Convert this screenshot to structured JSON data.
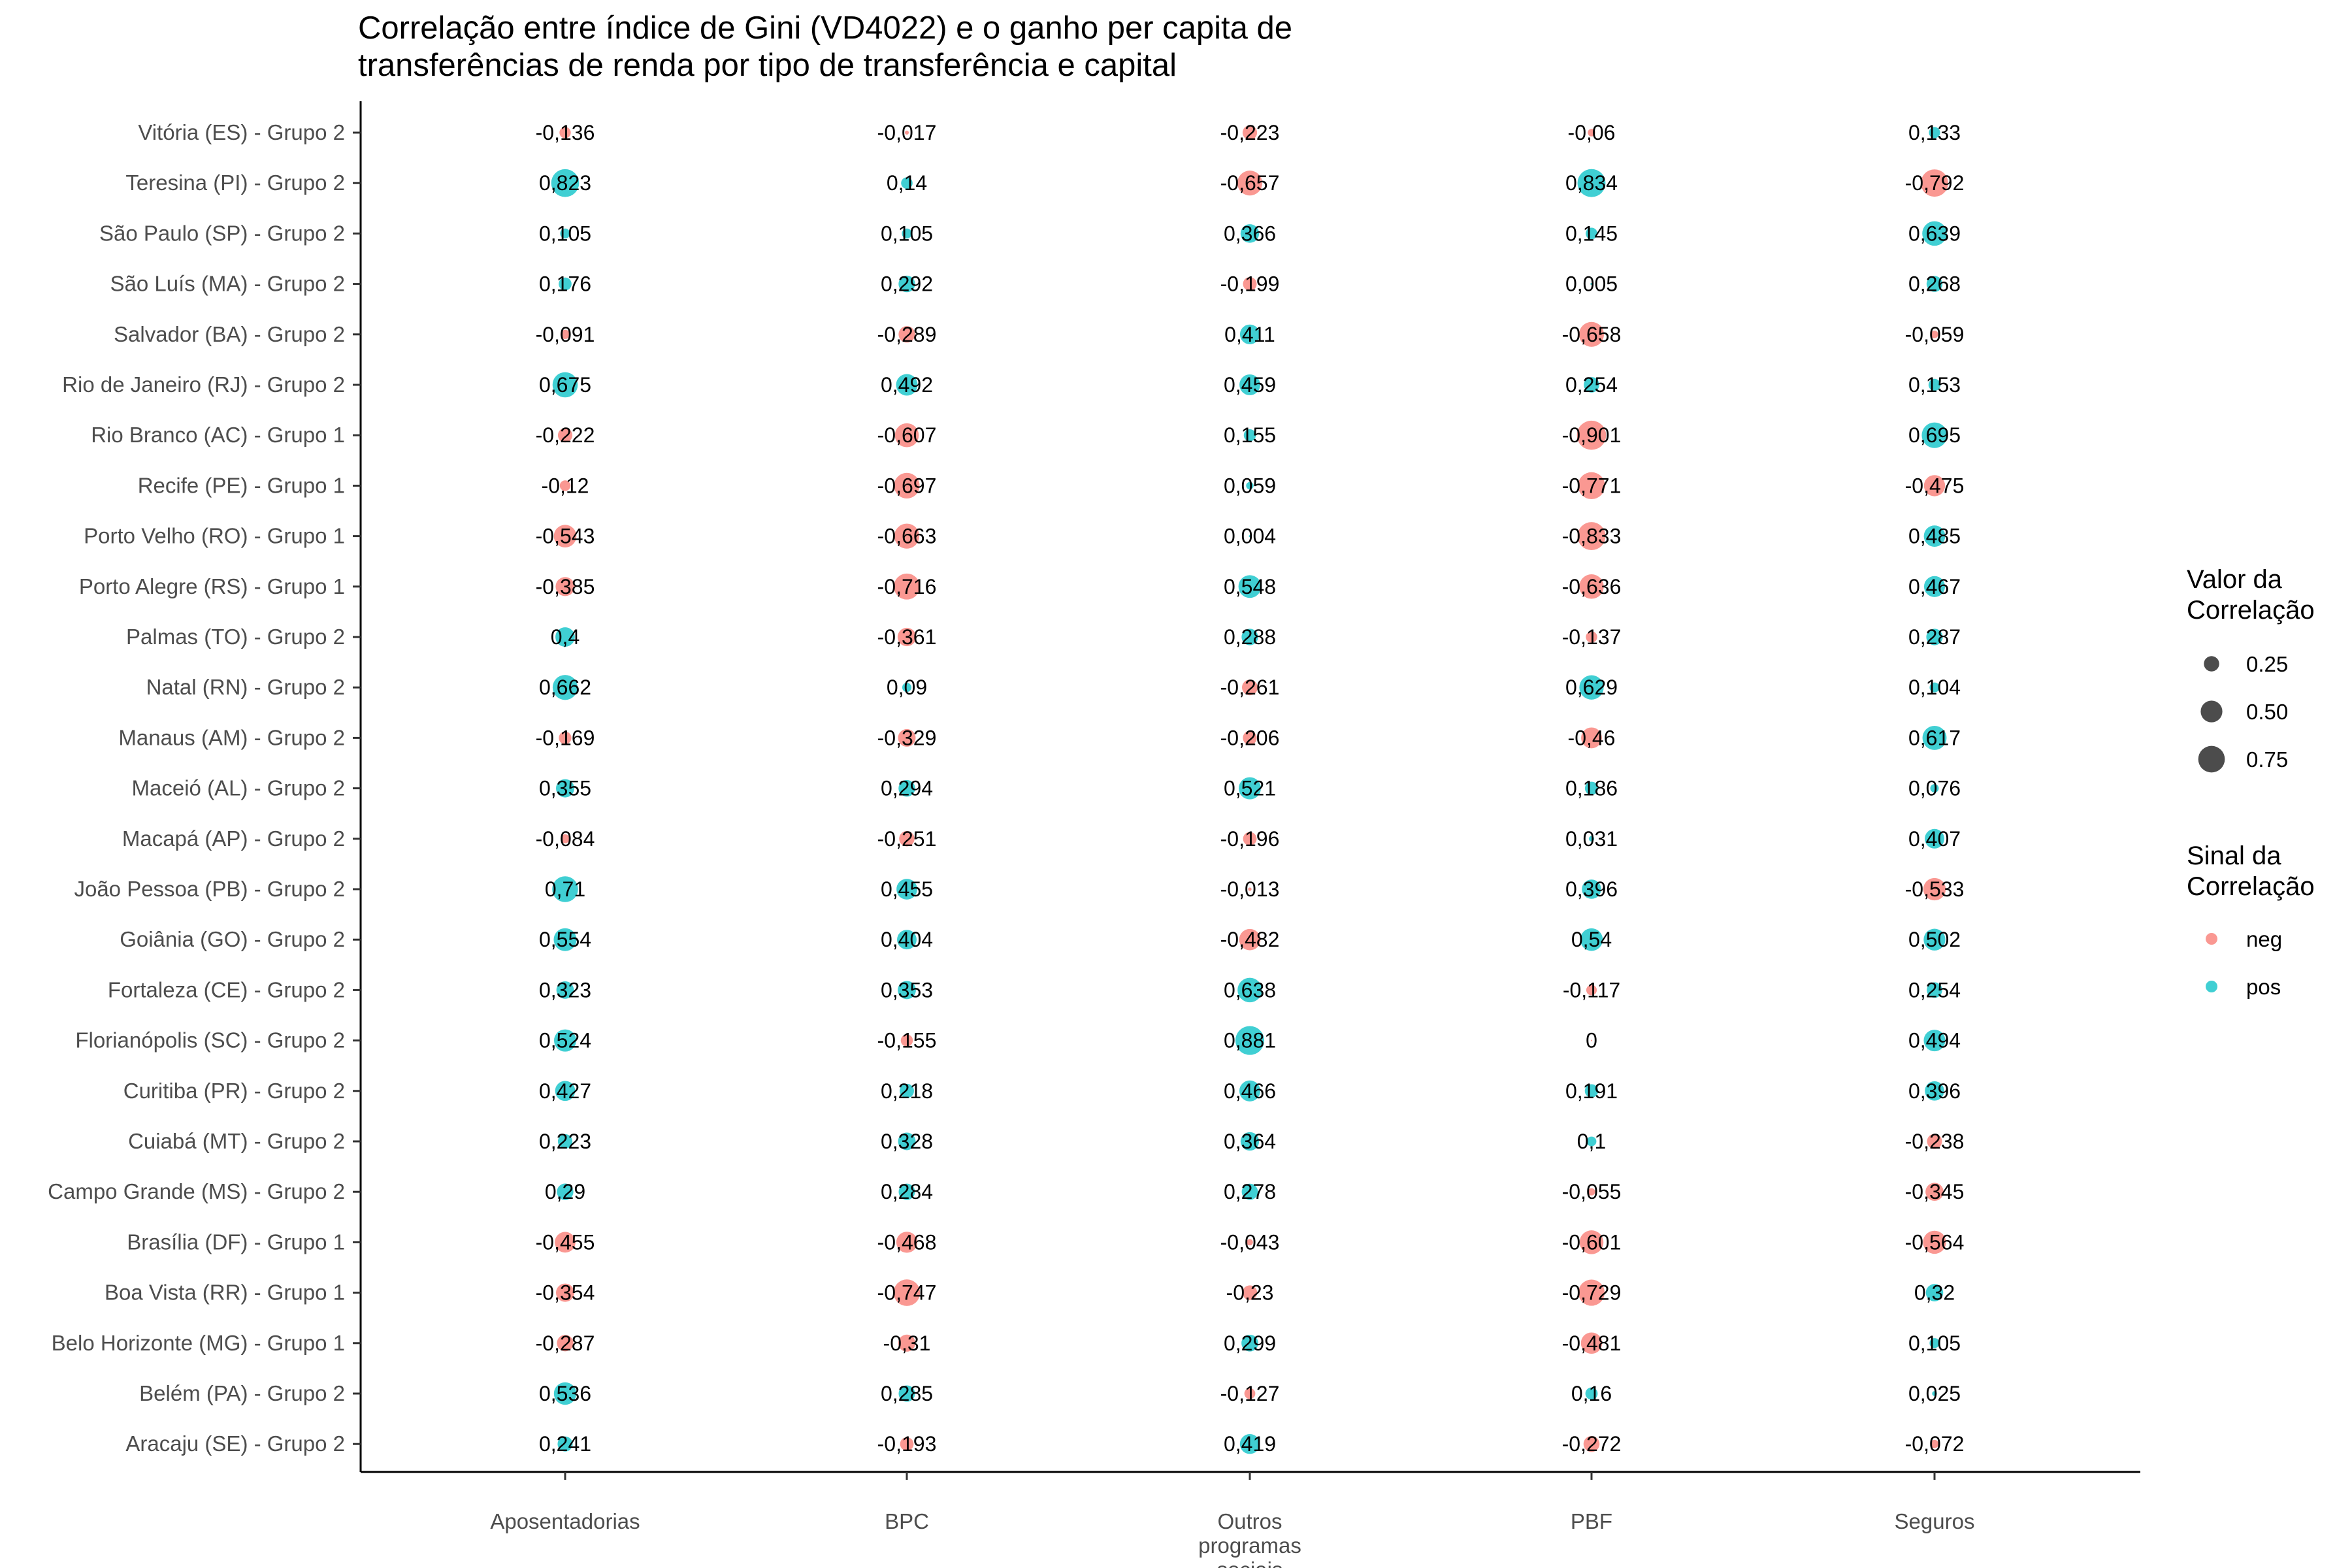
{
  "chart_data": {
    "type": "scatter",
    "title": [
      "Correlação entre índice de Gini (VD4022) e o ganho per capita de",
      "transferências de renda por tipo de transferência e capital"
    ],
    "xlabel": "",
    "ylabel": "",
    "categories": [
      {
        "key": "aposentadorias",
        "lines": [
          "Aposentadorias"
        ]
      },
      {
        "key": "bpc",
        "lines": [
          "BPC"
        ]
      },
      {
        "key": "outros",
        "lines": [
          "Outros",
          "programas",
          "sociais"
        ]
      },
      {
        "key": "pbf",
        "lines": [
          "PBF"
        ]
      },
      {
        "key": "seguros",
        "lines": [
          "Seguros"
        ]
      }
    ],
    "rows": [
      {
        "name": "Vitória (ES) - Grupo 2",
        "values": [
          "-0,136",
          "-0,017",
          "-0,223",
          "-0,06",
          "0,133"
        ]
      },
      {
        "name": "Teresina (PI) - Grupo 2",
        "values": [
          "0,823",
          "0,14",
          "-0,657",
          "0,834",
          "-0,792"
        ]
      },
      {
        "name": "São Paulo (SP) - Grupo 2",
        "values": [
          "0,105",
          "0,105",
          "0,366",
          "0,145",
          "0,639"
        ]
      },
      {
        "name": "São Luís (MA) - Grupo 2",
        "values": [
          "0,176",
          "0,292",
          "-0,199",
          "0,005",
          "0,268"
        ]
      },
      {
        "name": "Salvador (BA) - Grupo 2",
        "values": [
          "-0,091",
          "-0,289",
          "0,411",
          "-0,658",
          "-0,059"
        ]
      },
      {
        "name": "Rio de Janeiro (RJ) - Grupo 2",
        "values": [
          "0,675",
          "0,492",
          "0,459",
          "0,254",
          "0,153"
        ]
      },
      {
        "name": "Rio Branco (AC) - Grupo 1",
        "values": [
          "-0,222",
          "-0,607",
          "0,155",
          "-0,901",
          "0,695"
        ]
      },
      {
        "name": "Recife (PE) - Grupo 1",
        "values": [
          "-0,12",
          "-0,697",
          "0,059",
          "-0,771",
          "-0,475"
        ]
      },
      {
        "name": "Porto Velho (RO) - Grupo 1",
        "values": [
          "-0,543",
          "-0,663",
          "0,004",
          "-0,833",
          "0,485"
        ]
      },
      {
        "name": "Porto Alegre (RS) - Grupo 1",
        "values": [
          "-0,385",
          "-0,716",
          "0,548",
          "-0,636",
          "0,467"
        ]
      },
      {
        "name": "Palmas (TO) - Grupo 2",
        "values": [
          "0,4",
          "-0,361",
          "0,288",
          "-0,137",
          "0,287"
        ]
      },
      {
        "name": "Natal (RN) - Grupo 2",
        "values": [
          "0,662",
          "0,09",
          "-0,261",
          "0,629",
          "0,104"
        ]
      },
      {
        "name": "Manaus (AM) - Grupo 2",
        "values": [
          "-0,169",
          "-0,329",
          "-0,206",
          "-0,46",
          "0,617"
        ]
      },
      {
        "name": "Maceió (AL) - Grupo 2",
        "values": [
          "0,355",
          "0,294",
          "0,521",
          "0,186",
          "0,076"
        ]
      },
      {
        "name": "Macapá (AP) - Grupo 2",
        "values": [
          "-0,084",
          "-0,251",
          "-0,196",
          "0,031",
          "0,407"
        ]
      },
      {
        "name": "João Pessoa (PB) - Grupo 2",
        "values": [
          "0,71",
          "0,455",
          "-0,013",
          "0,396",
          "-0,533"
        ]
      },
      {
        "name": "Goiânia (GO) - Grupo 2",
        "values": [
          "0,554",
          "0,404",
          "-0,482",
          "0,54",
          "0,502"
        ]
      },
      {
        "name": "Fortaleza (CE) - Grupo 2",
        "values": [
          "0,323",
          "0,353",
          "0,638",
          "-0,117",
          "0,254"
        ]
      },
      {
        "name": "Florianópolis (SC) - Grupo 2",
        "values": [
          "0,524",
          "-0,155",
          "0,881",
          "0",
          "0,494"
        ]
      },
      {
        "name": "Curitiba (PR) - Grupo 2",
        "values": [
          "0,427",
          "0,218",
          "0,466",
          "0,191",
          "0,396"
        ]
      },
      {
        "name": "Cuiabá (MT) - Grupo 2",
        "values": [
          "0,223",
          "0,328",
          "0,364",
          "0,1",
          "-0,238"
        ]
      },
      {
        "name": "Campo Grande (MS) - Grupo 2",
        "values": [
          "0,29",
          "0,284",
          "0,278",
          "-0,055",
          "-0,345"
        ]
      },
      {
        "name": "Brasília (DF) - Grupo 1",
        "values": [
          "-0,455",
          "-0,468",
          "-0,043",
          "-0,601",
          "-0,564"
        ]
      },
      {
        "name": "Boa Vista (RR) - Grupo 1",
        "values": [
          "-0,354",
          "-0,747",
          "-0,23",
          "-0,729",
          "0,32"
        ]
      },
      {
        "name": "Belo Horizonte (MG) - Grupo 1",
        "values": [
          "-0,287",
          "-0,31",
          "0,299",
          "-0,481",
          "0,105"
        ]
      },
      {
        "name": "Belém (PA) - Grupo 2",
        "values": [
          "0,536",
          "0,285",
          "-0,127",
          "0,16",
          "0,025"
        ]
      },
      {
        "name": "Aracaju (SE) - Grupo 2",
        "values": [
          "0,241",
          "-0,193",
          "0,419",
          "-0,272",
          "-0,072"
        ]
      }
    ],
    "colors": {
      "neg": "#F8766D",
      "pos": "#00BFC4"
    },
    "legend": {
      "placement": "right",
      "size": {
        "title": [
          "Valor da",
          "Correlação"
        ],
        "breaks": [
          0.25,
          0.5,
          0.75
        ],
        "labels": [
          "0.25",
          "0.50",
          "0.75"
        ]
      },
      "sign": {
        "title": [
          "Sinal da",
          "Correlação"
        ],
        "items": [
          {
            "key": "neg",
            "label": "neg"
          },
          {
            "key": "pos",
            "label": "pos"
          }
        ]
      }
    },
    "grid": false
  }
}
